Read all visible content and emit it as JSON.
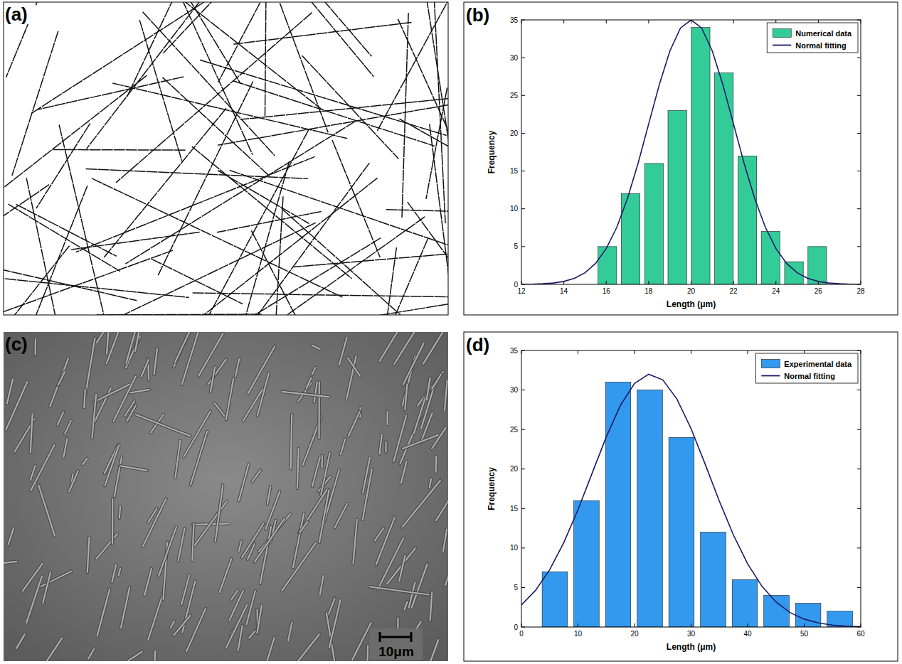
{
  "images": [
    {
      "label": "(a)"
    },
    {
      "label": "(c)",
      "scale_bar": "10μm"
    }
  ],
  "chart_data": [
    {
      "label": "(b)",
      "type": "histogram",
      "x_label": "Length (μm)",
      "y_label": "Frequency",
      "bins": [
        15.5,
        16.6,
        17.7,
        18.8,
        19.9,
        21.0,
        22.1,
        23.2,
        24.3,
        25.4,
        26.5
      ],
      "series": [
        {
          "name": "Numerical data",
          "type": "bar",
          "color": "#33cc99",
          "values": [
            5,
            12,
            16,
            23,
            34,
            28,
            17,
            7,
            3,
            5
          ]
        },
        {
          "name": "Normal fitting",
          "type": "line",
          "color": "#1a1a66",
          "x": [
            12,
            12.5,
            13,
            13.5,
            14,
            14.5,
            15,
            15.5,
            16,
            16.5,
            17,
            17.5,
            18,
            18.5,
            19,
            19.5,
            20,
            20.5,
            21,
            21.5,
            22,
            22.5,
            23,
            23.5,
            24,
            24.5,
            25,
            25.5,
            26,
            26.5,
            27,
            27.5,
            28
          ],
          "values": [
            0.01,
            0.03,
            0.08,
            0.18,
            0.39,
            0.8,
            1.54,
            2.79,
            4.74,
            7.57,
            11.36,
            16.02,
            21.23,
            26.42,
            30.89,
            33.92,
            35,
            33.92,
            30.89,
            26.42,
            21.23,
            16.02,
            11.36,
            7.57,
            4.74,
            2.79,
            1.54,
            0.8,
            0.39,
            0.18,
            0.08,
            0.03,
            0.01
          ]
        }
      ],
      "xlim": [
        12,
        28
      ],
      "xticks": [
        12,
        14,
        16,
        18,
        20,
        22,
        24,
        26,
        28
      ],
      "ylim": [
        0,
        35
      ],
      "yticks": [
        0,
        5,
        10,
        15,
        20,
        25,
        30,
        35
      ],
      "legend": "upper right",
      "grid": false
    },
    {
      "label": "(d)",
      "type": "histogram",
      "x_label": "Length (μm)",
      "y_label": "Frequency",
      "bins": [
        3.1,
        8.7,
        14.3,
        19.9,
        25.5,
        31.1,
        36.7,
        42.3,
        47.9,
        53.5,
        59.1
      ],
      "series": [
        {
          "name": "Experimental data",
          "type": "bar",
          "color": "#3399ee",
          "values": [
            7,
            16,
            31,
            30,
            24,
            12,
            6,
            4,
            3,
            2
          ]
        },
        {
          "name": "Normal fitting",
          "type": "line",
          "color": "#1a1a66",
          "x": [
            0,
            2.5,
            5,
            7.5,
            10,
            12.5,
            15,
            17.5,
            20,
            22.5,
            25,
            27.5,
            30,
            32.5,
            35,
            37.5,
            40,
            42.5,
            45,
            47.5,
            50,
            52.5,
            55,
            57.5,
            60
          ],
          "values": [
            2.8,
            4.64,
            7.25,
            10.69,
            14.85,
            19.47,
            24.06,
            28.05,
            30.84,
            31.99,
            31.28,
            28.85,
            25.1,
            20.59,
            15.93,
            11.63,
            8,
            5.19,
            3.18,
            1.83,
            1,
            0.51,
            0.25,
            0.11,
            0.05
          ]
        }
      ],
      "xlim": [
        0,
        60
      ],
      "xticks": [
        0,
        10,
        20,
        30,
        40,
        50,
        60
      ],
      "ylim": [
        0,
        35
      ],
      "yticks": [
        0,
        5,
        10,
        15,
        20,
        25,
        30,
        35
      ],
      "legend": "upper right",
      "grid": false
    }
  ]
}
